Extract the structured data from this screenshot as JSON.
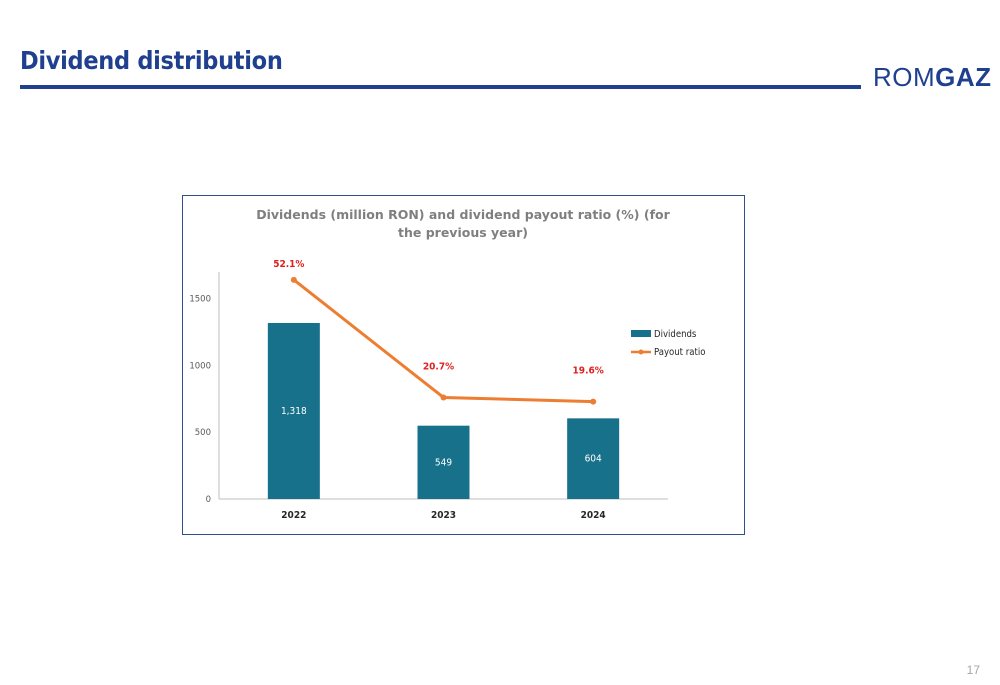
{
  "slide": {
    "title": "Dividend distribution",
    "logo_light": "ROM",
    "logo_bold": "GAZ",
    "page_number": "17"
  },
  "colors": {
    "brand": "#1f3f8f",
    "bar": "#17718a",
    "line": "#ed7d31",
    "data_label_line": "#e0201f"
  },
  "chart_data": {
    "type": "bar",
    "title": "Dividends (million RON) and dividend payout ratio (%) (for the previous year)",
    "categories": [
      "2022",
      "2023",
      "2024"
    ],
    "ylim": [
      0,
      1700
    ],
    "yticks": [
      "0",
      "500",
      "1000",
      "1500"
    ],
    "grid": false,
    "legend_position": "right",
    "series": [
      {
        "name": "Dividends",
        "kind": "bar",
        "values": [
          1318,
          549,
          604
        ],
        "labels": [
          "1,318",
          "549",
          "604"
        ]
      },
      {
        "name": "Payout ratio",
        "kind": "line",
        "secondary_axis": true,
        "values": [
          52.1,
          20.7,
          19.6
        ],
        "labels": [
          "52.1%",
          "20.7%",
          "19.6%"
        ]
      }
    ]
  }
}
